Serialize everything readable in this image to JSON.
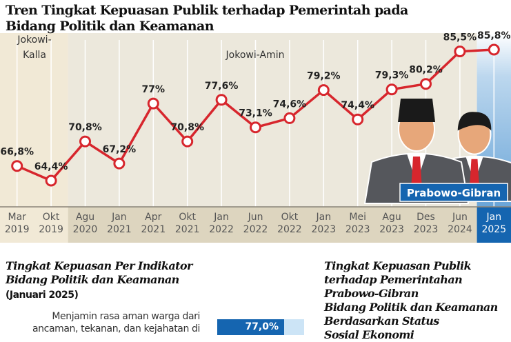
{
  "title": "Tren Tingkat Kepuasan Publik terhadap Pemerintah pada Bidang Politik dan Keamanan",
  "chart_data": {
    "type": "line",
    "title": "Tren Tingkat Kepuasan Publik terhadap Pemerintah pada Bidang Politik dan Keamanan",
    "categories": [
      [
        "Mar",
        "2019"
      ],
      [
        "Okt",
        "2019"
      ],
      [
        "Agu",
        "2020"
      ],
      [
        "Jan",
        "2021"
      ],
      [
        "Apr",
        "2021"
      ],
      [
        "Okt",
        "2021"
      ],
      [
        "Jan",
        "2022"
      ],
      [
        "Jun",
        "2022"
      ],
      [
        "Okt",
        "2022"
      ],
      [
        "Jan",
        "2023"
      ],
      [
        "Mei",
        "2023"
      ],
      [
        "Agu",
        "2023"
      ],
      [
        "Des",
        "2023"
      ],
      [
        "Jun",
        "2024"
      ],
      [
        "Jan",
        "2025"
      ]
    ],
    "values": [
      66.8,
      64.4,
      70.8,
      67.2,
      77,
      70.8,
      77.6,
      73.1,
      74.6,
      79.2,
      74.4,
      79.3,
      80.2,
      85.5,
      85.8
    ],
    "labels": [
      "66,8%",
      "64,4%",
      "70,8%",
      "67,2%",
      "77%",
      "70,8%",
      "77,6%",
      "73,1%",
      "74,6%",
      "79,2%",
      "74,4%",
      "79,3%",
      "80,2%",
      "85,5%",
      "85,8%"
    ],
    "periods": [
      {
        "name": "Jokowi-Kalla",
        "lines": [
          "Jokowi-",
          "Kalla"
        ],
        "from": 0,
        "to": 1,
        "color": "#f1e9d6"
      },
      {
        "name": "Jokowi-Amin",
        "lines": [
          "Jokowi-Amin"
        ],
        "from": 2,
        "to": 13,
        "color": "#ddd5bf"
      },
      {
        "name": "Prabowo-Gibran",
        "lines": [
          "Prabowo-Gibran"
        ],
        "from": 14,
        "to": 14,
        "color": "#1565b0"
      }
    ],
    "line_color": "#d7262d",
    "grid": "vertical"
  },
  "section_left": {
    "title_lines": [
      "Tingkat Kepuasan Per Indikator",
      "Bidang Politik dan Keamanan"
    ],
    "subtitle": "(Januari 2025)",
    "indicator": "Menjamin rasa aman warga dari ancaman, tekanan, dan kejahatan di",
    "value_label": "77,0%",
    "value": 77.0
  },
  "section_right": {
    "title_lines": [
      "Tingkat Kepuasan Publik",
      "terhadap Pemerintahan",
      "Prabowo-Gibran",
      "Bidang Politik dan Keamanan",
      "Berdasarkan Status",
      "Sosial Ekonomi"
    ]
  }
}
